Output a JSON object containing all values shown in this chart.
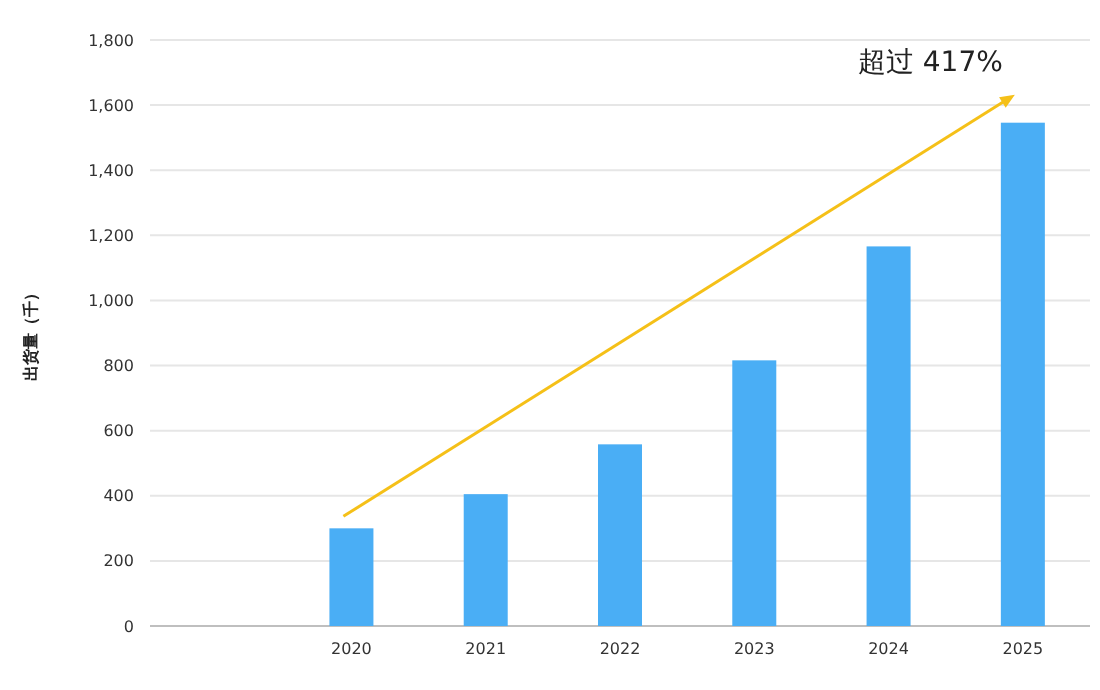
{
  "chart_data": {
    "type": "bar",
    "ylabel": "出货量（千）",
    "categories": [
      null,
      "2020",
      "2021",
      "2022",
      "2023",
      "2024",
      "2025"
    ],
    "values": [
      null,
      300,
      405,
      558,
      816,
      1166,
      1546
    ],
    "color": "#4aaef5",
    "ylim": [
      0,
      1800
    ],
    "yticks": [
      0,
      200,
      400,
      600,
      800,
      {
        "value": 1000,
        "label": "1,000"
      },
      {
        "value": 1200,
        "label": "1,200"
      },
      {
        "value": 1400,
        "label": "1,400"
      },
      {
        "value": 1600,
        "label": "1,600"
      },
      {
        "value": 1800,
        "label": "1,800"
      }
    ],
    "grid": "y",
    "annotations": [
      "超过 417%"
    ]
  }
}
